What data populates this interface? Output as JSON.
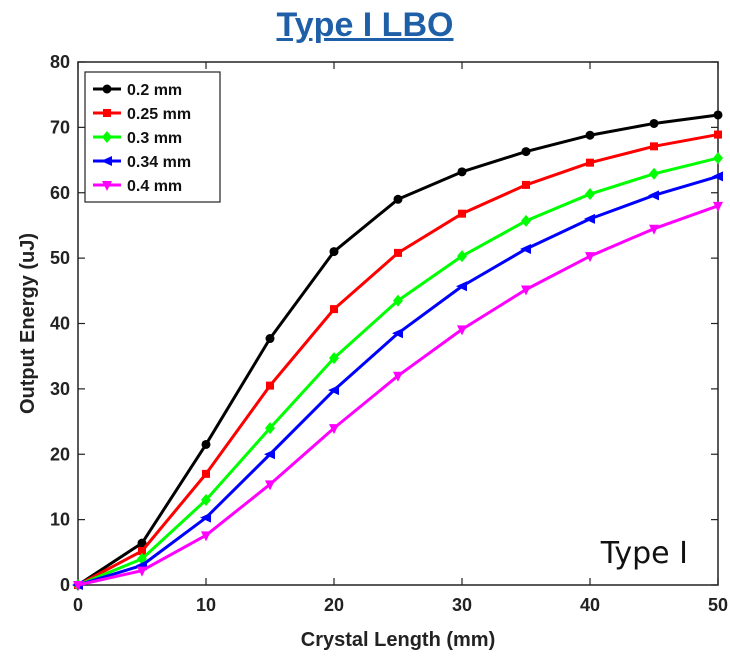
{
  "chart_data": {
    "type": "line",
    "title": "Type I LBO",
    "xlabel": "Crystal Length (mm)",
    "ylabel": "Output Energy (uJ)",
    "xlim": [
      0,
      50
    ],
    "ylim": [
      0,
      80
    ],
    "xticks": [
      "0",
      "10",
      "20",
      "30",
      "40",
      "50"
    ],
    "yticks": [
      "0",
      "10",
      "20",
      "30",
      "40",
      "50",
      "60",
      "70",
      "80"
    ],
    "grid": false,
    "legend_position": "top-left",
    "annotation": "Type I",
    "x": [
      0,
      5,
      10,
      15,
      20,
      25,
      30,
      35,
      40,
      45,
      50
    ],
    "series": [
      {
        "name": "0.2 mm",
        "color": "#000000",
        "marker": "circle",
        "values": [
          0,
          6.4,
          21.5,
          37.7,
          51.0,
          59.0,
          63.2,
          66.3,
          68.8,
          70.6,
          71.9
        ]
      },
      {
        "name": "0.25 mm",
        "color": "#ff0000",
        "marker": "square",
        "values": [
          0,
          5.2,
          17.0,
          30.5,
          42.2,
          50.8,
          56.8,
          61.2,
          64.6,
          67.1,
          68.9
        ]
      },
      {
        "name": "0.3 mm",
        "color": "#00ff00",
        "marker": "diamond",
        "values": [
          0,
          4.0,
          13.0,
          24.0,
          34.7,
          43.5,
          50.3,
          55.7,
          59.8,
          62.9,
          65.3
        ]
      },
      {
        "name": "0.34 mm",
        "color": "#0000ff",
        "marker": "triangle-left",
        "values": [
          0,
          3.0,
          10.3,
          20.0,
          29.8,
          38.5,
          45.7,
          51.4,
          56.0,
          59.6,
          62.5
        ]
      },
      {
        "name": "0.4 mm",
        "color": "#ff00ff",
        "marker": "triangle-down",
        "values": [
          0,
          2.2,
          7.6,
          15.4,
          24.0,
          32.0,
          39.1,
          45.2,
          50.3,
          54.5,
          58.0
        ]
      }
    ]
  }
}
